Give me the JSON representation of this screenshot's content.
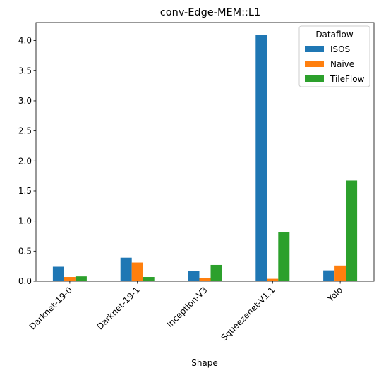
{
  "chart_data": {
    "type": "bar",
    "title": "conv-Edge-MEM::L1",
    "xlabel": "Shape",
    "ylabel": "",
    "categories": [
      "Darknet-19-0",
      "Darknet-19-1",
      "Inception-V3",
      "Squeezenet-V1.1",
      "Yolo"
    ],
    "ylim": [
      0,
      4.3
    ],
    "yticks": [
      0.0,
      0.5,
      1.0,
      1.5,
      2.0,
      2.5,
      3.0,
      3.5,
      4.0
    ],
    "ytick_labels": [
      "0.0",
      "0.5",
      "1.0",
      "1.5",
      "2.0",
      "2.5",
      "3.0",
      "3.5",
      "4.0"
    ],
    "legend": {
      "title": "Dataflow",
      "position": "top-right"
    },
    "grid": false,
    "series": [
      {
        "name": "ISOS",
        "color": "#1f77b4",
        "values": [
          0.24,
          0.39,
          0.17,
          4.09,
          0.18
        ]
      },
      {
        "name": "Naive",
        "color": "#ff7f0e",
        "values": [
          0.07,
          0.31,
          0.05,
          0.04,
          0.26
        ]
      },
      {
        "name": "TileFlow",
        "color": "#2ca02c",
        "values": [
          0.08,
          0.07,
          0.27,
          0.82,
          1.67
        ]
      }
    ]
  }
}
